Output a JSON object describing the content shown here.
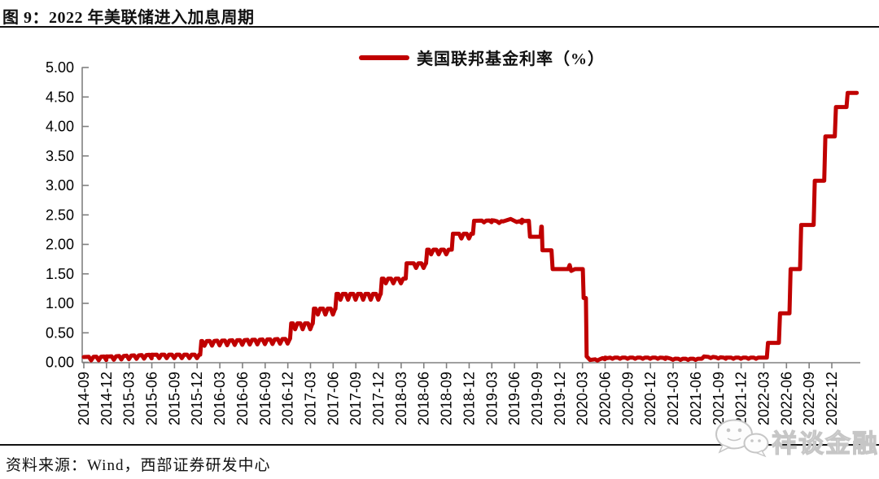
{
  "figure": {
    "title": "图 9：2022 年美联储进入加息周期",
    "source": "资料来源：Wind，西部证券研发中心",
    "watermark_text": "祥谈金融"
  },
  "legend": {
    "label": "美国联邦基金利率（%）"
  },
  "colors": {
    "series": "#c00000",
    "axis": "#808080",
    "text": "#000000",
    "rule": "#111111",
    "watermark": "#c6c6c6"
  },
  "chart_data": {
    "type": "line",
    "title": "2022 年美联储进入加息周期",
    "xlabel": "",
    "ylabel": "",
    "ylim": [
      0,
      5
    ],
    "grid": false,
    "legend_position": "top-center",
    "x_unit": "months since 2014-09",
    "x_tick_interval_months": 3,
    "x_tick_labels": [
      "2014-09",
      "2014-12",
      "2015-03",
      "2015-06",
      "2015-09",
      "2015-12",
      "2016-03",
      "2016-06",
      "2016-09",
      "2016-12",
      "2017-03",
      "2017-06",
      "2017-09",
      "2017-12",
      "2018-03",
      "2018-06",
      "2018-09",
      "2018-12",
      "2019-03",
      "2019-06",
      "2019-09",
      "2019-12",
      "2020-03",
      "2020-06",
      "2020-09",
      "2020-12",
      "2021-03",
      "2021-06",
      "2021-09",
      "2021-12",
      "2022-03",
      "2022-06",
      "2022-09",
      "2022-12"
    ],
    "y_tick_labels": [
      "0.00",
      "0.50",
      "1.00",
      "1.50",
      "2.00",
      "2.50",
      "3.00",
      "3.50",
      "4.00",
      "4.50",
      "5.00"
    ],
    "series": [
      {
        "name": "美国联邦基金利率（%）",
        "color": "#c00000",
        "points": [
          [
            0,
            0.09
          ],
          [
            3,
            0.1
          ],
          [
            9,
            0.13
          ],
          [
            15.4,
            0.13
          ],
          [
            15.55,
            0.36
          ],
          [
            27.3,
            0.4
          ],
          [
            27.45,
            0.66
          ],
          [
            30.3,
            0.66
          ],
          [
            30.45,
            0.91
          ],
          [
            33.3,
            0.91
          ],
          [
            33.45,
            1.16
          ],
          [
            39.3,
            1.16
          ],
          [
            39.45,
            1.42
          ],
          [
            42.6,
            1.42
          ],
          [
            42.72,
            1.68
          ],
          [
            45.3,
            1.68
          ],
          [
            45.45,
            1.91
          ],
          [
            48.7,
            1.91
          ],
          [
            48.85,
            2.18
          ],
          [
            51.5,
            2.18
          ],
          [
            51.65,
            2.4
          ],
          [
            54,
            2.41
          ],
          [
            55.5,
            2.39
          ],
          [
            56.5,
            2.43
          ],
          [
            57.3,
            2.38
          ],
          [
            58,
            2.42
          ],
          [
            58.9,
            2.4
          ],
          [
            59.05,
            2.13
          ],
          [
            60.45,
            2.13
          ],
          [
            60.55,
            2.3
          ],
          [
            60.62,
            2.3
          ],
          [
            60.7,
            1.9
          ],
          [
            61.9,
            1.9
          ],
          [
            62.05,
            1.58
          ],
          [
            64.1,
            1.58
          ],
          [
            64.3,
            1.65
          ],
          [
            64.5,
            1.55
          ],
          [
            65,
            1.58
          ],
          [
            66.05,
            1.58
          ],
          [
            66.15,
            1.09
          ],
          [
            66.45,
            1.09
          ],
          [
            66.55,
            0.1
          ],
          [
            67,
            0.04
          ],
          [
            69,
            0.08
          ],
          [
            77,
            0.08
          ],
          [
            78.5,
            0.06
          ],
          [
            81.8,
            0.06
          ],
          [
            82.1,
            0.1
          ],
          [
            85,
            0.08
          ],
          [
            90.4,
            0.08
          ],
          [
            90.55,
            0.33
          ],
          [
            92,
            0.33
          ],
          [
            92.15,
            0.83
          ],
          [
            93.4,
            0.83
          ],
          [
            93.55,
            1.58
          ],
          [
            94.8,
            1.58
          ],
          [
            94.95,
            2.33
          ],
          [
            96.6,
            2.33
          ],
          [
            96.75,
            3.08
          ],
          [
            98,
            3.08
          ],
          [
            98.15,
            3.83
          ],
          [
            99.4,
            3.83
          ],
          [
            99.55,
            4.33
          ],
          [
            100.95,
            4.33
          ],
          [
            101.1,
            4.57
          ],
          [
            102.3,
            4.57
          ]
        ]
      }
    ],
    "monthly_dip_regions": [
      {
        "from": 1,
        "to": 15,
        "depth": 0.06
      },
      {
        "from": 16,
        "to": 27,
        "depth": 0.08
      },
      {
        "from": 28,
        "to": 39,
        "depth": 0.1
      },
      {
        "from": 40,
        "to": 51,
        "depth": 0.08
      },
      {
        "from": 53,
        "to": 58,
        "depth": 0.03
      },
      {
        "from": 68,
        "to": 89,
        "depth": 0.02
      }
    ]
  }
}
